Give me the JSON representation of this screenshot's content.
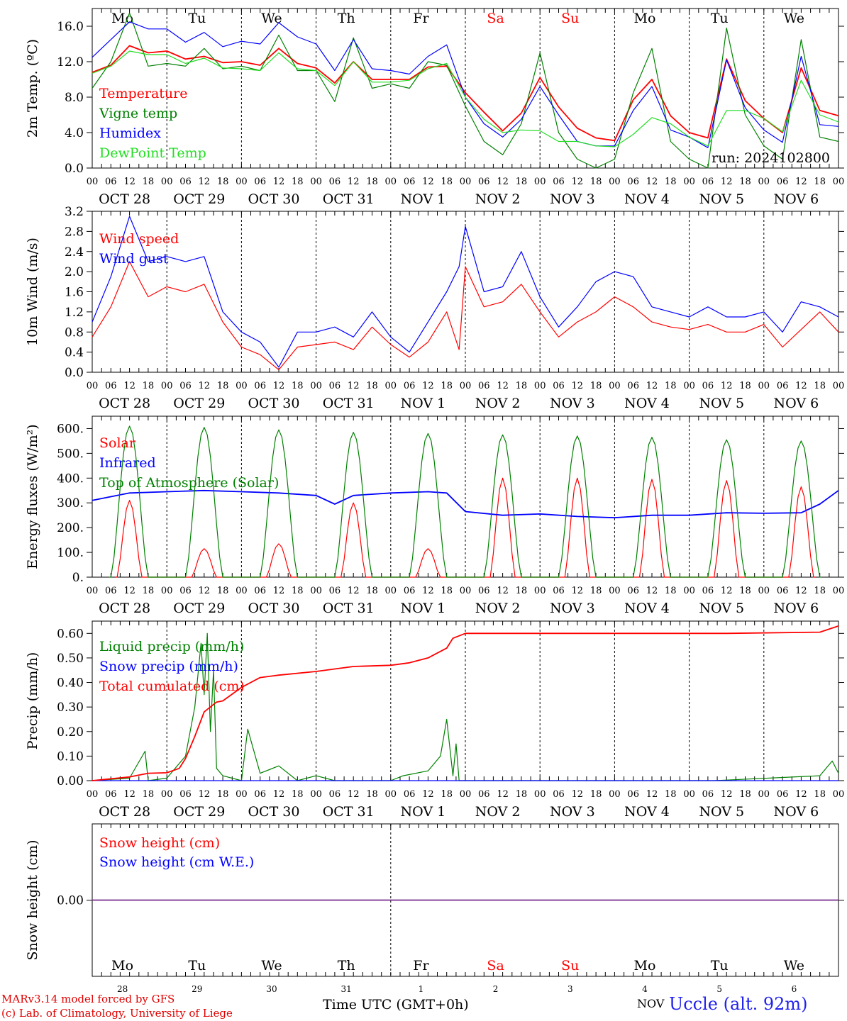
{
  "run_label": "run: 2024102800",
  "footer": {
    "credit_line1": "MARv3.14 model forced by GFS",
    "credit_line2": "(c) Lab. of Climatology, University of Liege",
    "xaxis_title": "Time UTC (GMT+0h)",
    "month_label": "NOV",
    "station": "Uccle (alt. 92m)"
  },
  "days": {
    "weekday_labels": [
      "Mo",
      "Tu",
      "We",
      "Th",
      "Fr",
      "Sa",
      "Su",
      "Mo",
      "Tu",
      "We"
    ],
    "weekend_indices": [
      5,
      6
    ],
    "date_labels": [
      "OCT 28",
      "OCT 29",
      "OCT 30",
      "OCT 31",
      "NOV  1",
      "NOV  2",
      "NOV  3",
      "NOV  4",
      "NOV  5",
      "NOV  6"
    ],
    "day_numbers": [
      "28",
      "29",
      "30",
      "31",
      "1",
      "2",
      "3",
      "4",
      "5",
      "6"
    ],
    "hour_ticks": [
      "00",
      "06",
      "12",
      "18"
    ],
    "final_tick": "00"
  },
  "colors": {
    "red": "#ff0000",
    "green": "#008000",
    "blue": "#0000ff",
    "lightgreen": "#22dd22",
    "weekend": "#ff0000",
    "snowline": "#7b2d8e"
  },
  "chart_data": [
    {
      "type": "line",
      "ylabel": "2m Temp. (ºC)",
      "ylim": [
        0,
        18
      ],
      "yticks": [
        "0.0",
        "4.0",
        "8.0",
        "12.0",
        "16.0"
      ],
      "ytick_values": [
        0,
        4,
        8,
        12,
        16
      ],
      "x_unit": "hours since 28 Oct 00 UTC",
      "xlim": [
        0,
        240
      ],
      "series": [
        {
          "name": "Temperature",
          "color": "#ff0000",
          "x": [
            0,
            6,
            12,
            18,
            24,
            30,
            36,
            42,
            48,
            54,
            60,
            66,
            72,
            78,
            84,
            90,
            96,
            102,
            108,
            114,
            120,
            126,
            132,
            138,
            144,
            150,
            156,
            162,
            168,
            174,
            180,
            186,
            192,
            198,
            204,
            210,
            216,
            222,
            228,
            234,
            240
          ],
          "y": [
            10.8,
            11.6,
            13.8,
            13.0,
            13.2,
            12.3,
            12.6,
            11.9,
            12.0,
            11.6,
            13.5,
            11.8,
            11.3,
            9.6,
            12.0,
            10.0,
            10.0,
            10.0,
            11.4,
            11.5,
            8.5,
            6.3,
            4.2,
            6.2,
            10.2,
            6.9,
            4.5,
            3.4,
            3.1,
            7.7,
            10.0,
            5.9,
            4.0,
            3.4,
            12.3,
            7.6,
            5.6,
            4.0,
            11.3,
            6.5,
            5.9
          ]
        },
        {
          "name": "Vigne temp",
          "color": "#008000",
          "x": [
            0,
            6,
            12,
            18,
            24,
            30,
            36,
            42,
            48,
            54,
            60,
            66,
            72,
            78,
            84,
            90,
            96,
            102,
            108,
            114,
            120,
            126,
            132,
            138,
            144,
            150,
            156,
            162,
            168,
            174,
            180,
            186,
            192,
            198,
            204,
            210,
            216,
            222,
            228,
            234,
            240
          ],
          "y": [
            9.0,
            12.0,
            17.5,
            11.5,
            11.8,
            11.5,
            13.5,
            11.2,
            11.5,
            11.0,
            15.0,
            11.0,
            11.0,
            7.5,
            14.7,
            9.0,
            9.5,
            9.0,
            12.0,
            11.6,
            7.0,
            3.0,
            1.5,
            5.0,
            13.0,
            4.0,
            1.0,
            0.0,
            1.0,
            8.5,
            13.5,
            3.0,
            1.0,
            0.0,
            15.8,
            6.0,
            2.5,
            1.0,
            14.5,
            3.5,
            3.0
          ]
        },
        {
          "name": "Humidex",
          "color": "#0000ff",
          "x": [
            0,
            6,
            12,
            18,
            24,
            30,
            36,
            42,
            48,
            54,
            60,
            66,
            72,
            78,
            84,
            90,
            96,
            102,
            108,
            114,
            120,
            126,
            132,
            138,
            144,
            150,
            156,
            162,
            168,
            174,
            180,
            186,
            192,
            198,
            204,
            210,
            216,
            222,
            228,
            234,
            240
          ],
          "y": [
            12.5,
            14.5,
            16.5,
            15.7,
            15.7,
            14.2,
            15.3,
            13.7,
            14.3,
            14.0,
            16.4,
            14.8,
            14.0,
            11.0,
            14.5,
            11.2,
            11.0,
            10.6,
            12.6,
            13.9,
            8.0,
            5.0,
            3.5,
            5.5,
            9.2,
            6.0,
            3.0,
            2.5,
            2.5,
            6.5,
            9.2,
            4.3,
            3.5,
            2.3,
            12.2,
            6.8,
            4.3,
            2.9,
            12.6,
            4.9,
            4.7
          ]
        },
        {
          "name": "DewPoint Temp",
          "color": "#22dd22",
          "x": [
            0,
            6,
            12,
            18,
            24,
            30,
            36,
            42,
            48,
            54,
            60,
            66,
            72,
            78,
            84,
            90,
            96,
            102,
            108,
            114,
            120,
            126,
            132,
            138,
            144,
            150,
            156,
            162,
            168,
            174,
            180,
            186,
            192,
            198,
            204,
            210,
            216,
            222,
            228,
            234,
            240
          ],
          "y": [
            10.7,
            11.5,
            13.2,
            12.8,
            12.8,
            11.8,
            12.4,
            11.3,
            11.2,
            11.0,
            13.0,
            11.2,
            11.0,
            9.3,
            12.0,
            9.7,
            9.7,
            9.9,
            11.2,
            11.8,
            8.0,
            5.5,
            4.0,
            4.3,
            4.2,
            3.0,
            3.0,
            2.5,
            2.4,
            3.8,
            5.7,
            5.0,
            3.5,
            2.5,
            6.5,
            6.5,
            5.6,
            4.1,
            9.9,
            6.0,
            5.2
          ]
        }
      ]
    },
    {
      "type": "line",
      "ylabel": "10m Wind (m/s)",
      "ylim": [
        0,
        3.2
      ],
      "yticks": [
        "0.0",
        "0.4",
        "0.8",
        "1.2",
        "1.6",
        "2.0",
        "2.4",
        "2.8",
        "3.2"
      ],
      "ytick_values": [
        0,
        0.4,
        0.8,
        1.2,
        1.6,
        2.0,
        2.4,
        2.8,
        3.2
      ],
      "xlim": [
        0,
        240
      ],
      "series": [
        {
          "name": "Wind speed",
          "color": "#ff0000",
          "x": [
            0,
            6,
            12,
            18,
            24,
            30,
            36,
            42,
            48,
            54,
            60,
            66,
            72,
            78,
            84,
            90,
            96,
            102,
            108,
            114,
            118,
            120,
            126,
            132,
            138,
            144,
            150,
            156,
            162,
            168,
            174,
            180,
            186,
            192,
            198,
            204,
            210,
            216,
            222,
            228,
            234,
            240
          ],
          "y": [
            0.7,
            1.3,
            2.2,
            1.5,
            1.7,
            1.6,
            1.75,
            1.0,
            0.5,
            0.35,
            0.05,
            0.5,
            0.55,
            0.6,
            0.45,
            0.9,
            0.55,
            0.3,
            0.6,
            1.2,
            0.45,
            2.1,
            1.3,
            1.4,
            1.75,
            1.2,
            0.7,
            1.0,
            1.2,
            1.5,
            1.3,
            1.0,
            0.9,
            0.85,
            0.95,
            0.8,
            0.8,
            0.95,
            0.5,
            0.85,
            1.2,
            0.8
          ]
        },
        {
          "name": "Wind gust",
          "color": "#0000ff",
          "x": [
            0,
            6,
            12,
            18,
            24,
            30,
            36,
            42,
            48,
            54,
            60,
            66,
            72,
            78,
            84,
            90,
            96,
            102,
            108,
            114,
            118,
            120,
            126,
            132,
            138,
            144,
            150,
            156,
            162,
            168,
            174,
            180,
            186,
            192,
            198,
            204,
            210,
            216,
            222,
            228,
            234,
            240
          ],
          "y": [
            1.0,
            1.9,
            3.1,
            2.2,
            2.3,
            2.2,
            2.3,
            1.2,
            0.8,
            0.6,
            0.1,
            0.8,
            0.8,
            0.9,
            0.7,
            1.2,
            0.7,
            0.4,
            1.0,
            1.6,
            2.1,
            2.9,
            1.6,
            1.7,
            2.4,
            1.5,
            0.9,
            1.3,
            1.8,
            2.0,
            1.9,
            1.3,
            1.2,
            1.1,
            1.3,
            1.1,
            1.1,
            1.2,
            0.8,
            1.4,
            1.3,
            1.1
          ]
        }
      ]
    },
    {
      "type": "line",
      "ylabel": "Energy fluxes (W/m²)",
      "ylim": [
        0,
        650
      ],
      "yticks": [
        "0.",
        "100.",
        "200.",
        "300.",
        "400.",
        "500.",
        "600."
      ],
      "ytick_values": [
        0,
        100,
        200,
        300,
        400,
        500,
        600
      ],
      "xlim": [
        0,
        240
      ],
      "series": [
        {
          "name": "Solar",
          "color": "#ff0000",
          "peaks": [
            310,
            115,
            135,
            300,
            115,
            400,
            400,
            395,
            390,
            365
          ]
        },
        {
          "name": "Infrared",
          "color": "#0000ff",
          "x": [
            0,
            12,
            24,
            36,
            48,
            60,
            72,
            78,
            84,
            96,
            108,
            114,
            120,
            132,
            144,
            156,
            168,
            180,
            192,
            204,
            216,
            228,
            234,
            240
          ],
          "y": [
            310,
            340,
            345,
            350,
            345,
            340,
            330,
            295,
            330,
            340,
            345,
            340,
            265,
            250,
            255,
            245,
            240,
            250,
            250,
            260,
            258,
            260,
            295,
            350
          ]
        },
        {
          "name": "Top of Atmosphere (Solar)",
          "color": "#008000",
          "peaks": [
            610,
            605,
            595,
            585,
            580,
            575,
            570,
            565,
            555,
            550
          ]
        }
      ]
    },
    {
      "type": "line",
      "ylabel": "Precip (mm/h)",
      "ylim": [
        0,
        0.65
      ],
      "yticks": [
        "0.00",
        "0.10",
        "0.20",
        "0.30",
        "0.40",
        "0.50",
        "0.60"
      ],
      "ytick_values": [
        0,
        0.1,
        0.2,
        0.3,
        0.4,
        0.5,
        0.6
      ],
      "xlim": [
        0,
        240
      ],
      "series": [
        {
          "name": "Liquid precip (mm/h)",
          "color": "#008000",
          "x": [
            0,
            12,
            17,
            18,
            24,
            30,
            33,
            35,
            36,
            37,
            38,
            39,
            40,
            42,
            48,
            50,
            54,
            60,
            66,
            72,
            78,
            84,
            90,
            96,
            100,
            108,
            112,
            114,
            116,
            117,
            118,
            120,
            200,
            234,
            238,
            240
          ],
          "y": [
            0,
            0.01,
            0.12,
            0,
            0.01,
            0.1,
            0.3,
            0.56,
            0.35,
            0.6,
            0.2,
            0.45,
            0.05,
            0.02,
            0,
            0.21,
            0.03,
            0.06,
            0,
            0.02,
            0,
            0,
            0,
            0,
            0.02,
            0.04,
            0.1,
            0.25,
            0.02,
            0.15,
            0,
            0,
            0,
            0.02,
            0.08,
            0.03
          ]
        },
        {
          "name": "Snow precip (mm/h)",
          "color": "#0000ff",
          "x": [
            0,
            240
          ],
          "y": [
            0,
            0
          ]
        },
        {
          "name": "Total cumulated (cm)",
          "color": "#ff0000",
          "x": [
            0,
            12,
            18,
            24,
            28,
            30,
            33,
            36,
            40,
            42,
            48,
            54,
            60,
            72,
            84,
            96,
            102,
            108,
            114,
            116,
            120,
            204,
            234,
            240
          ],
          "y": [
            0.0,
            0.015,
            0.03,
            0.032,
            0.05,
            0.09,
            0.18,
            0.28,
            0.32,
            0.325,
            0.38,
            0.42,
            0.43,
            0.445,
            0.465,
            0.47,
            0.48,
            0.5,
            0.54,
            0.58,
            0.6,
            0.6,
            0.605,
            0.63
          ]
        }
      ]
    },
    {
      "type": "line",
      "ylabel": "Snow height (cm)",
      "ylim": [
        -1,
        1
      ],
      "yticks": [
        "0.00"
      ],
      "ytick_values": [
        0
      ],
      "xlim": [
        0,
        240
      ],
      "series": [
        {
          "name": "Snow height (cm)",
          "color": "#ff0000",
          "x": [
            0,
            240
          ],
          "y": [
            0,
            0
          ]
        },
        {
          "name": "Snow height (cm W.E.)",
          "color": "#0000ff",
          "x": [
            0,
            240
          ],
          "y": [
            0,
            0
          ]
        }
      ]
    }
  ]
}
